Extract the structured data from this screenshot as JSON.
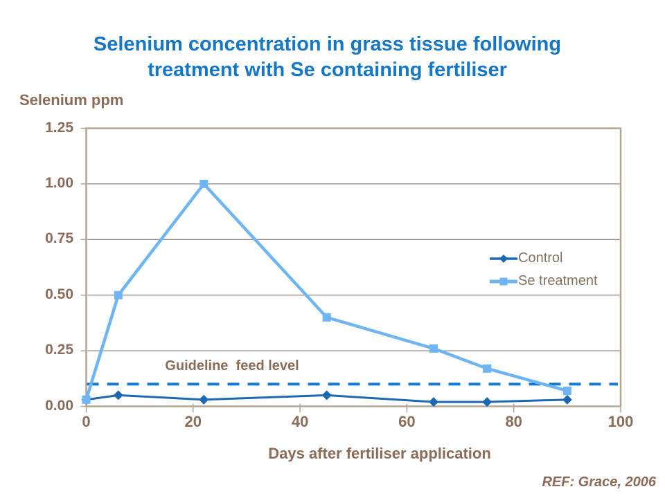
{
  "slide": {
    "title_line1": "Selenium concentration in grass tissue following",
    "title_line2": "treatment with Se containing fertiliser",
    "reference": "REF: Grace, 2006"
  },
  "chart_data": {
    "type": "line",
    "title": "Selenium concentration in grass tissue following treatment with Se containing fertiliser",
    "xlabel": "Days after fertiliser application",
    "ylabel": "Selenium ppm",
    "x": [
      0,
      6,
      22,
      45,
      65,
      75,
      90
    ],
    "series": [
      {
        "name": "Control",
        "color": "#1C68B4",
        "marker": "diamond",
        "line_width": 3,
        "values": [
          0.03,
          0.05,
          0.03,
          0.05,
          0.02,
          0.02,
          0.03
        ]
      },
      {
        "name": "Se treatment",
        "color": "#6FB5F3",
        "marker": "square",
        "line_width": 4.5,
        "values": [
          0.03,
          0.5,
          1.0,
          0.4,
          0.26,
          0.17,
          0.07
        ]
      }
    ],
    "guideline": {
      "label": "Guideline  feed level",
      "value": 0.1,
      "color": "#147AD4",
      "style": "dashed"
    },
    "x_ticks": [
      "0",
      "20",
      "40",
      "60",
      "80",
      "100"
    ],
    "y_ticks": [
      "0.00",
      "0.25",
      "0.50",
      "0.75",
      "1.00",
      "1.25"
    ],
    "xlim": [
      0,
      100
    ],
    "ylim": [
      0,
      1.25
    ],
    "grid": "horizontal",
    "legend_position": "inside-right"
  },
  "colors": {
    "title_blue": "#1577C6",
    "label_brown": "#8A6C58",
    "legend_text": "#847262",
    "gridline": "#6E665C",
    "axis_tan": "#B2A495",
    "background": "#FFFFFF"
  }
}
